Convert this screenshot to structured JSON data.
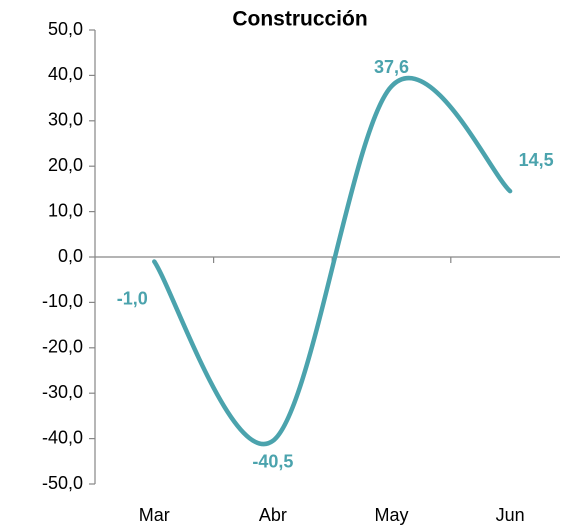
{
  "chart_data": {
    "type": "line",
    "title": "Construcción",
    "categories": [
      "Mar",
      "Abr",
      "May",
      "Jun"
    ],
    "series": [
      {
        "name": "Construcción",
        "color": "#4ba3ad",
        "values": [
          -1.0,
          -40.5,
          37.6,
          14.5
        ],
        "value_labels": [
          "-1,0",
          "-40,5",
          "37,6",
          "14,5"
        ]
      }
    ],
    "ylim": [
      -50,
      50
    ],
    "yticks": [
      {
        "value": -50,
        "label": "-50,0"
      },
      {
        "value": -40,
        "label": "-40,0"
      },
      {
        "value": -30,
        "label": "-30,0"
      },
      {
        "value": -20,
        "label": "-20,0"
      },
      {
        "value": -10,
        "label": "-10,0"
      },
      {
        "value": 0,
        "label": "0,0"
      },
      {
        "value": 10,
        "label": "10,0"
      },
      {
        "value": 20,
        "label": "20,0"
      },
      {
        "value": 30,
        "label": "30,0"
      },
      {
        "value": 40,
        "label": "40,0"
      },
      {
        "value": 50,
        "label": "50,0"
      }
    ],
    "smooth": true
  }
}
